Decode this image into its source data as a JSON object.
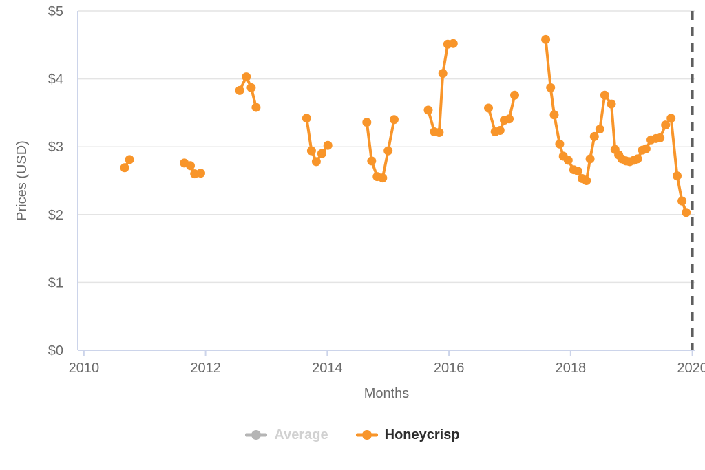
{
  "figure": {
    "background": "#ffffff"
  },
  "colors": {
    "series_orange": "#f8952a",
    "grid": "#e4e4e4",
    "axis_line": "#ccd4ea",
    "tick_text": "#6a6a6a",
    "dashed_marker_line": "#5e5e5e",
    "legend_inactive_marker": "#b5b5b5",
    "legend_inactive_text": "#d1d1d1",
    "legend_active_text": "#2d2d2d"
  },
  "chart_data": {
    "type": "line",
    "title": "",
    "xlabel": "Months",
    "ylabel": "Prices (USD)",
    "xlim": [
      2009.9,
      2020.05
    ],
    "ylim": [
      0,
      5
    ],
    "grid": "horizontal",
    "legend_position": "bottom-center",
    "x_ticks": [
      {
        "value": 2010,
        "label": "2010"
      },
      {
        "value": 2012,
        "label": "2012"
      },
      {
        "value": 2014,
        "label": "2014"
      },
      {
        "value": 2016,
        "label": "2016"
      },
      {
        "value": 2018,
        "label": "2018"
      },
      {
        "value": 2020,
        "label": "2020"
      }
    ],
    "y_ticks": [
      {
        "value": 0,
        "label": "$0"
      },
      {
        "value": 1,
        "label": "$1"
      },
      {
        "value": 2,
        "label": "$2"
      },
      {
        "value": 3,
        "label": "$3"
      },
      {
        "value": 4,
        "label": "$4"
      },
      {
        "value": 5,
        "label": "$5"
      }
    ],
    "series": [
      {
        "name": "Average",
        "color": "#b5b5b5",
        "text_color": "#d1d1d1",
        "active": false,
        "segments": []
      },
      {
        "name": "Honeycrisp",
        "color": "#f8952a",
        "text_color": "#2d2d2d",
        "active": true,
        "segments": [
          [
            [
              2010.67,
              2.69
            ],
            [
              2010.75,
              2.81
            ]
          ],
          [
            [
              2011.65,
              2.76
            ],
            [
              2011.75,
              2.72
            ],
            [
              2011.82,
              2.6
            ],
            [
              2011.92,
              2.61
            ]
          ],
          [
            [
              2012.56,
              3.83
            ],
            [
              2012.67,
              4.03
            ],
            [
              2012.75,
              3.87
            ],
            [
              2012.83,
              3.58
            ]
          ],
          [
            [
              2013.66,
              3.42
            ],
            [
              2013.74,
              2.94
            ],
            [
              2013.82,
              2.78
            ],
            [
              2013.91,
              2.9
            ],
            [
              2014.01,
              3.02
            ]
          ],
          [
            [
              2014.65,
              3.36
            ],
            [
              2014.73,
              2.79
            ],
            [
              2014.82,
              2.56
            ],
            [
              2014.91,
              2.54
            ],
            [
              2015.0,
              2.94
            ],
            [
              2015.1,
              3.4
            ]
          ],
          [
            [
              2015.66,
              3.54
            ],
            [
              2015.76,
              3.22
            ],
            [
              2015.84,
              3.21
            ],
            [
              2015.9,
              4.08
            ],
            [
              2015.98,
              4.51
            ],
            [
              2016.07,
              4.52
            ]
          ],
          [
            [
              2016.65,
              3.57
            ],
            [
              2016.76,
              3.22
            ],
            [
              2016.84,
              3.24
            ],
            [
              2016.91,
              3.39
            ],
            [
              2016.99,
              3.41
            ],
            [
              2017.08,
              3.76
            ]
          ],
          [
            [
              2017.59,
              4.58
            ],
            [
              2017.67,
              3.87
            ],
            [
              2017.73,
              3.47
            ],
            [
              2017.82,
              3.04
            ],
            [
              2017.88,
              2.86
            ],
            [
              2017.96,
              2.8
            ],
            [
              2018.05,
              2.66
            ],
            [
              2018.12,
              2.64
            ],
            [
              2018.19,
              2.53
            ],
            [
              2018.26,
              2.5
            ],
            [
              2018.32,
              2.82
            ],
            [
              2018.39,
              3.15
            ],
            [
              2018.48,
              3.26
            ],
            [
              2018.56,
              3.76
            ],
            [
              2018.67,
              3.63
            ],
            [
              2018.73,
              2.96
            ],
            [
              2018.79,
              2.88
            ],
            [
              2018.84,
              2.82
            ],
            [
              2018.91,
              2.79
            ],
            [
              2018.97,
              2.78
            ],
            [
              2019.04,
              2.8
            ],
            [
              2019.1,
              2.82
            ],
            [
              2019.18,
              2.95
            ],
            [
              2019.24,
              2.97
            ],
            [
              2019.32,
              3.1
            ],
            [
              2019.4,
              3.12
            ],
            [
              2019.47,
              3.13
            ],
            [
              2019.56,
              3.32
            ],
            [
              2019.65,
              3.42
            ],
            [
              2019.75,
              2.57
            ],
            [
              2019.83,
              2.2
            ],
            [
              2019.9,
              2.03
            ]
          ]
        ]
      }
    ],
    "annotations": [
      {
        "type": "vline",
        "x": 2020.0,
        "color": "#5e5e5e",
        "dash": [
          13,
          10
        ],
        "width": 4
      }
    ]
  }
}
